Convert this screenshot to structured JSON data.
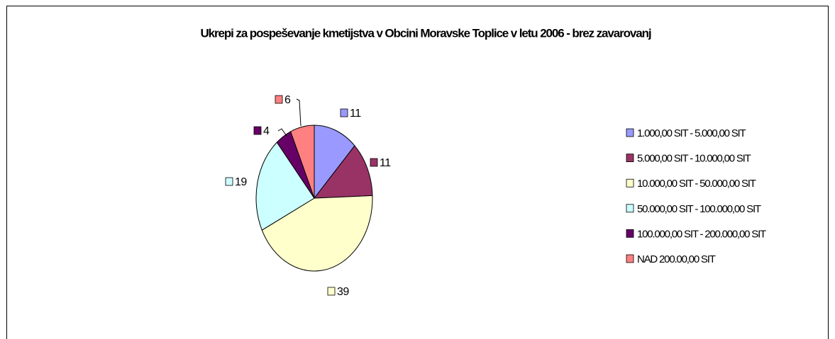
{
  "chart_data": {
    "type": "pie",
    "title": "Ukrepi za pospeševanje kmetijstva v Obcini Moravske Toplice v letu 2006 - brez zavarovanj",
    "categories": [
      "1.000,00 SIT - 5.000,00 SIT",
      "5.000,00 SIT - 10.000,00 SIT",
      "10.000,00 SIT - 50.000,00 SIT",
      "50.000,00 SIT - 100.000,00 SIT",
      "100.000,00 SIT - 200.000,00 SIT",
      "NAD 200.00,00 SIT"
    ],
    "values": [
      11,
      11,
      39,
      19,
      4,
      6
    ],
    "colors": [
      "#9999ff",
      "#993366",
      "#ffffcc",
      "#ccffff",
      "#660066",
      "#ff8080"
    ],
    "legend": "right"
  }
}
